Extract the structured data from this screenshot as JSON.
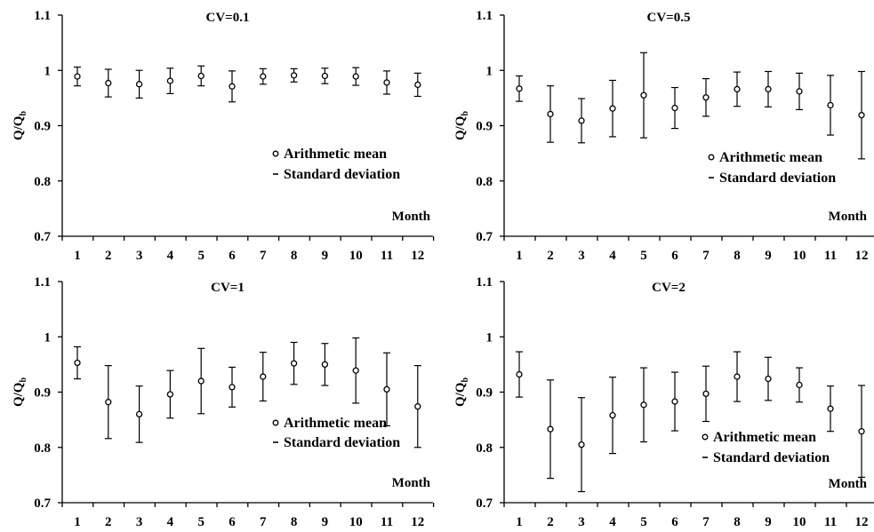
{
  "chart_data": [
    {
      "type": "scatter",
      "title": "CV=0.1",
      "ylabel_main": "Q/Q",
      "ylabel_sub": "b",
      "xlabel": "Month",
      "ylim": [
        0.7,
        1.1
      ],
      "yticks": [
        "0.7",
        "0.8",
        "0.9",
        "1",
        "1.1"
      ],
      "x": [
        "1",
        "2",
        "3",
        "4",
        "5",
        "6",
        "7",
        "8",
        "9",
        "10",
        "11",
        "12"
      ],
      "series": [
        {
          "name": "Arithmetic mean",
          "values": [
            0.989,
            0.977,
            0.975,
            0.981,
            0.99,
            0.971,
            0.989,
            0.991,
            0.99,
            0.989,
            0.978,
            0.974
          ]
        },
        {
          "name": "Standard deviation",
          "values": [
            0.017,
            0.025,
            0.025,
            0.023,
            0.018,
            0.028,
            0.014,
            0.012,
            0.014,
            0.016,
            0.021,
            0.021
          ]
        }
      ],
      "legend": {
        "mean_label": "Arithmetic mean",
        "sd_label": "Standard deviation",
        "position": "right"
      }
    },
    {
      "type": "scatter",
      "title": "CV=0.5",
      "ylabel_main": "Q/Q",
      "ylabel_sub": "b",
      "xlabel": "Month",
      "ylim": [
        0.7,
        1.1
      ],
      "yticks": [
        "0.7",
        "0.8",
        "0.9",
        "1",
        "1.1"
      ],
      "x": [
        "1",
        "2",
        "3",
        "4",
        "5",
        "6",
        "7",
        "8",
        "9",
        "10",
        "11",
        "12"
      ],
      "series": [
        {
          "name": "Arithmetic mean",
          "values": [
            0.967,
            0.921,
            0.909,
            0.931,
            0.955,
            0.932,
            0.951,
            0.966,
            0.966,
            0.962,
            0.937,
            0.919
          ]
        },
        {
          "name": "Standard deviation",
          "values": [
            0.023,
            0.051,
            0.04,
            0.051,
            0.077,
            0.037,
            0.034,
            0.031,
            0.032,
            0.033,
            0.054,
            0.079
          ]
        }
      ],
      "legend": {
        "mean_label": "Arithmetic mean",
        "sd_label": "Standard deviation",
        "position": "right"
      }
    },
    {
      "type": "scatter",
      "title": "CV=1",
      "ylabel_main": "Q/Q",
      "ylabel_sub": "b",
      "xlabel": "Month",
      "ylim": [
        0.7,
        1.1
      ],
      "yticks": [
        "0.7",
        "0.8",
        "0.9",
        "1",
        "1.1"
      ],
      "x": [
        "1",
        "2",
        "3",
        "4",
        "5",
        "6",
        "7",
        "8",
        "9",
        "10",
        "11",
        "12"
      ],
      "series": [
        {
          "name": "Arithmetic mean",
          "values": [
            0.953,
            0.882,
            0.86,
            0.896,
            0.92,
            0.909,
            0.928,
            0.952,
            0.95,
            0.939,
            0.905,
            0.874
          ]
        },
        {
          "name": "Standard deviation",
          "values": [
            0.029,
            0.066,
            0.051,
            0.043,
            0.059,
            0.036,
            0.044,
            0.038,
            0.038,
            0.059,
            0.066,
            0.074
          ]
        }
      ],
      "legend": {
        "mean_label": "Arithmetic mean",
        "sd_label": "Standard deviation",
        "position": "right"
      }
    },
    {
      "type": "scatter",
      "title": "CV=2",
      "ylabel_main": "Q/Q",
      "ylabel_sub": "b",
      "xlabel": "Month",
      "ylim": [
        0.7,
        1.1
      ],
      "yticks": [
        "0.7",
        "0.8",
        "0.9",
        "1",
        "1.1"
      ],
      "x": [
        "1",
        "2",
        "3",
        "4",
        "5",
        "6",
        "7",
        "8",
        "9",
        "10",
        "11",
        "12"
      ],
      "series": [
        {
          "name": "Arithmetic mean",
          "values": [
            0.932,
            0.833,
            0.805,
            0.858,
            0.877,
            0.883,
            0.897,
            0.928,
            0.924,
            0.913,
            0.87,
            0.829
          ]
        },
        {
          "name": "Standard deviation",
          "values": [
            0.041,
            0.089,
            0.085,
            0.069,
            0.067,
            0.053,
            0.05,
            0.045,
            0.039,
            0.031,
            0.041,
            0.083
          ]
        }
      ],
      "legend": {
        "mean_label": "Arithmetic mean",
        "sd_label": "Standard deviation",
        "position": "right"
      }
    }
  ]
}
